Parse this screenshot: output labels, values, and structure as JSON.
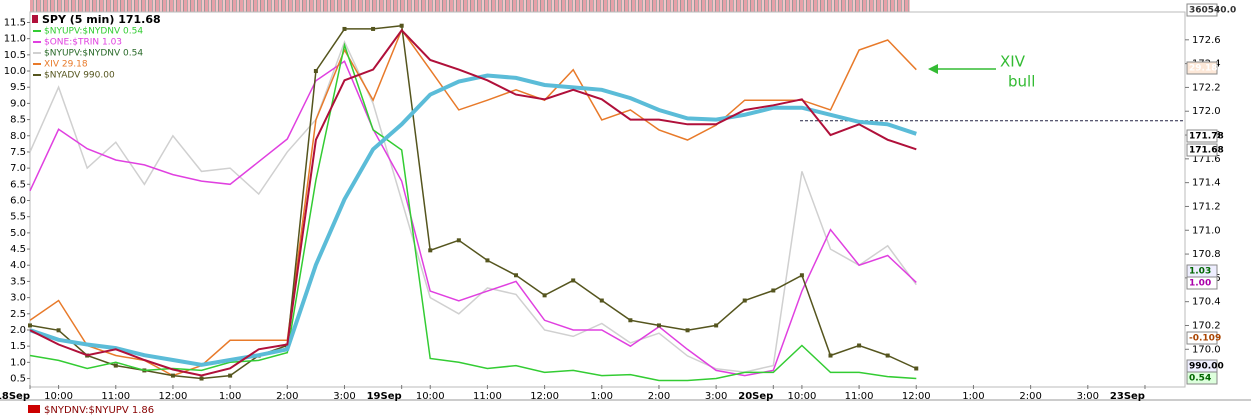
{
  "chart_data": {
    "type": "line",
    "title": "SPY (5 min) 171.68",
    "x": [
      0,
      0.5,
      1,
      1.5,
      2,
      2.5,
      3,
      3.5,
      4,
      4.5,
      5,
      5.5,
      6,
      6.5,
      7,
      7.5,
      8,
      8.5,
      9,
      9.5,
      10,
      10.5,
      11,
      11.5,
      12,
      12.5,
      13,
      13.5,
      14,
      14.5,
      15,
      15.5
    ],
    "xlim": [
      0,
      20.2
    ],
    "xticks": [
      {
        "value": 0,
        "label": "18Sep"
      },
      {
        "value": 0.5,
        "label": "10:00"
      },
      {
        "value": 1.5,
        "label": "11:00"
      },
      {
        "value": 2.5,
        "label": "12:00"
      },
      {
        "value": 3.5,
        "label": "1:00"
      },
      {
        "value": 4.5,
        "label": "2:00"
      },
      {
        "value": 5.5,
        "label": "3:00"
      },
      {
        "value": 6.5,
        "label": "19Sep"
      },
      {
        "value": 7,
        "label": "10:00"
      },
      {
        "value": 8,
        "label": "11:00"
      },
      {
        "value": 9,
        "label": "12:00"
      },
      {
        "value": 10,
        "label": "1:00"
      },
      {
        "value": 11,
        "label": "2:00"
      },
      {
        "value": 12,
        "label": "3:00"
      },
      {
        "value": 13,
        "label": "20Sep"
      },
      {
        "value": 13.5,
        "label": "10:00"
      },
      {
        "value": 14.5,
        "label": "11:00"
      },
      {
        "value": 15.5,
        "label": "12:00"
      },
      {
        "value": 16.5,
        "label": "1:00"
      },
      {
        "value": 17.5,
        "label": "2:00"
      },
      {
        "value": 18.5,
        "label": "3:00"
      },
      {
        "value": 19.5,
        "label": "23Sep"
      }
    ],
    "ylim": [
      0.3,
      11.7
    ],
    "yticks": [
      0.5,
      {
        "value": 1,
        "label": "1.0"
      },
      1.5,
      {
        "value": 2,
        "label": "2.0"
      },
      2.5,
      {
        "value": 3,
        "label": "3.0"
      },
      3.5,
      {
        "value": 4,
        "label": "4.0"
      },
      4.5,
      {
        "value": 5,
        "label": "5.0"
      },
      5.5,
      {
        "value": 6,
        "label": "6.0"
      },
      6.5,
      {
        "value": 7,
        "label": "7.0"
      },
      7.5,
      {
        "value": 8,
        "label": "8.0"
      },
      8.5,
      {
        "value": 9,
        "label": "9.0"
      },
      9.5,
      {
        "value": 10,
        "label": "10.0"
      },
      10.5,
      {
        "value": 11,
        "label": "11.0"
      },
      11.5
    ],
    "y2lim": [
      169.7,
      172.8
    ],
    "y2ticks": [
      {
        "value": 170,
        "label": "170.0"
      },
      170.2,
      170.4,
      170.6,
      170.8,
      {
        "value": 171,
        "label": "171.0"
      },
      171.2,
      171.4,
      171.6,
      171.8,
      {
        "value": 172,
        "label": "172.0"
      },
      172.2,
      172.4,
      172.6
    ],
    "series": [
      {
        "name": "SPY (5 min) 171.68",
        "axis": "y2",
        "color": "#b0103a",
        "values": [
          170.16,
          170.04,
          169.95,
          170.0,
          169.91,
          169.83,
          169.78,
          169.84,
          170.0,
          170.04,
          171.76,
          172.26,
          172.35,
          172.68,
          172.43,
          172.35,
          172.26,
          172.14,
          172.1,
          172.18,
          172.1,
          171.93,
          171.93,
          171.89,
          171.89,
          172.01,
          172.05,
          172.1,
          171.8,
          171.89,
          171.76,
          171.68
        ]
      },
      {
        "name": "$NYUPV:$NYDNV  0.54",
        "color": "#33cc33",
        "values": [
          1.21,
          1.06,
          0.81,
          1.0,
          0.75,
          0.81,
          0.75,
          1.0,
          1.06,
          1.3,
          6.63,
          10.8,
          8.18,
          7.56,
          1.12,
          1.0,
          0.81,
          0.9,
          0.69,
          0.75,
          0.59,
          0.62,
          0.44,
          0.44,
          0.5,
          0.69,
          0.69,
          1.52,
          0.69,
          0.69,
          0.56,
          0.5
        ]
      },
      {
        "name": "$ONE:$TRIN  1.03",
        "color": "#e040e0",
        "values": [
          6.3,
          8.2,
          7.6,
          7.25,
          7.1,
          6.8,
          6.6,
          6.5,
          7.2,
          7.9,
          9.7,
          10.3,
          8.2,
          6.6,
          3.2,
          2.9,
          3.2,
          3.5,
          2.3,
          2.0,
          2.0,
          1.5,
          2.1,
          1.4,
          0.75,
          0.59,
          0.75,
          3.2,
          5.1,
          4.0,
          4.3,
          3.47
        ]
      },
      {
        "name": "$NYUPV:$NYDNV  0.54",
        "color": "#d0d0d0",
        "values": [
          7.5,
          9.5,
          7.0,
          7.8,
          6.5,
          8.0,
          6.9,
          7.0,
          6.2,
          7.5,
          8.5,
          10.9,
          9.0,
          6.0,
          3.0,
          2.5,
          3.3,
          3.1,
          2.0,
          1.8,
          2.2,
          1.6,
          1.9,
          1.2,
          0.8,
          0.7,
          0.9,
          6.9,
          4.5,
          4.0,
          4.6,
          3.4
        ]
      },
      {
        "name": "XIV  29.18",
        "color": "#e87a2a",
        "values": [
          2.3,
          2.91,
          1.52,
          1.21,
          1.06,
          0.59,
          0.9,
          1.68,
          1.68,
          1.68,
          8.49,
          10.65,
          9.1,
          11.27,
          10.04,
          8.8,
          9.1,
          9.42,
          9.1,
          10.04,
          8.49,
          8.8,
          8.18,
          7.87,
          8.33,
          9.1,
          9.1,
          9.1,
          8.8,
          10.65,
          10.96,
          10.04
        ]
      },
      {
        "name": "$NYADV  990.00",
        "color": "#55551e",
        "markers": true,
        "values": [
          2.14,
          1.99,
          1.21,
          0.9,
          0.75,
          0.59,
          0.5,
          0.59,
          1.21,
          1.52,
          10.0,
          11.3,
          11.3,
          11.4,
          4.46,
          4.77,
          4.15,
          3.69,
          3.07,
          3.53,
          2.91,
          2.3,
          2.14,
          1.99,
          2.14,
          2.91,
          3.22,
          3.69,
          1.21,
          1.52,
          1.21,
          0.81
        ]
      }
    ],
    "moving_average": {
      "axis": "y2",
      "color": "#5bbcd8",
      "values": [
        170.16,
        170.08,
        170.04,
        170.01,
        169.95,
        169.91,
        169.87,
        169.91,
        169.95,
        170.0,
        170.71,
        171.26,
        171.68,
        171.89,
        172.14,
        172.25,
        172.3,
        172.28,
        172.22,
        172.2,
        172.18,
        172.11,
        172.01,
        171.94,
        171.93,
        171.97,
        172.03,
        172.03,
        171.97,
        171.91,
        171.89,
        171.81
      ]
    },
    "reference_line": 171.92,
    "annotation": [
      "XIV",
      "bull"
    ],
    "right_labels": [
      "29.18",
      "171.78",
      "171.68",
      "1.03",
      "1.00",
      "-0.109",
      "990.00",
      "0.54",
      "360540.0"
    ],
    "lower_pane_legend": "$NYDNV:$NYUPV  1.86"
  }
}
